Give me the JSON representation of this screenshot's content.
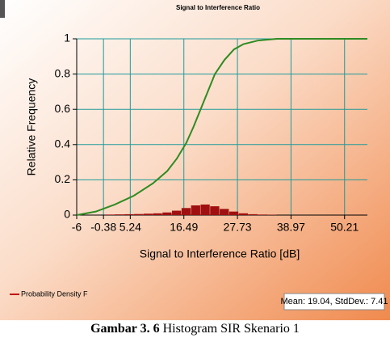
{
  "chart_data": {
    "type": "line",
    "title": "Signal to Interference Ratio",
    "xlabel": "Signal to Interference Ratio [dB]",
    "ylabel": "Relative Frequency",
    "xlim": [
      -6,
      55
    ],
    "ylim": [
      0,
      1
    ],
    "xticks": [
      -6,
      -0.38,
      5.24,
      16.49,
      27.73,
      38.97,
      50.21
    ],
    "yticks": [
      0,
      0.2,
      0.4,
      0.6,
      0.8,
      1
    ],
    "grid": true,
    "cdf": {
      "color": "#2e8b22",
      "x": [
        -6,
        -2,
        2,
        6,
        10,
        13,
        15,
        17,
        18.5,
        20,
        21.5,
        23,
        25,
        27,
        29,
        32,
        36,
        40,
        55
      ],
      "values": [
        0,
        0.02,
        0.06,
        0.11,
        0.18,
        0.25,
        0.32,
        0.41,
        0.5,
        0.6,
        0.7,
        0.8,
        0.88,
        0.94,
        0.97,
        0.99,
        1,
        1,
        1
      ]
    },
    "histogram": {
      "name": "Probability Density F",
      "color": "#a01010",
      "bins": [
        0,
        2,
        4,
        6,
        8,
        10,
        12,
        14,
        16,
        18,
        20,
        22,
        24,
        26,
        28,
        30,
        32,
        34,
        36
      ],
      "values": [
        0.003,
        0.004,
        0.005,
        0.006,
        0.008,
        0.01,
        0.015,
        0.025,
        0.04,
        0.055,
        0.06,
        0.05,
        0.035,
        0.02,
        0.01,
        0.005,
        0.003,
        0.002
      ]
    },
    "annotation": "Mean: 19.04, StdDev.: 7.41"
  },
  "caption": {
    "label": "Gambar 3. 6",
    "text": "Histogram SIR Skenario 1"
  }
}
